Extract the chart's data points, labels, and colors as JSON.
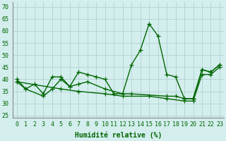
{
  "x_all": [
    0,
    1,
    2,
    3,
    4,
    5,
    6,
    7,
    8,
    9,
    10,
    11,
    12,
    13,
    14,
    15,
    16,
    17,
    18,
    19,
    20,
    21,
    22,
    23
  ],
  "line1": [
    40,
    36,
    38,
    34,
    41,
    41,
    37,
    43,
    42,
    41,
    40,
    34,
    34,
    46,
    52,
    63,
    58,
    42,
    41,
    32,
    32,
    44,
    43,
    46
  ],
  "line2_x": [
    0,
    1,
    3,
    4,
    5,
    6,
    7,
    8,
    10,
    12,
    13,
    17,
    18,
    19,
    20,
    21,
    22,
    23
  ],
  "line2_y": [
    39,
    36,
    33,
    36,
    40,
    37,
    38,
    39,
    36,
    34,
    34,
    33,
    33,
    32,
    32,
    44,
    43,
    46
  ],
  "line3_x": [
    0,
    5,
    7,
    10,
    12,
    15,
    17,
    19,
    20,
    21,
    22,
    23
  ],
  "line3_y": [
    39,
    36,
    35,
    34,
    33,
    33,
    32,
    31,
    31,
    42,
    42,
    45
  ],
  "background_color": "#d4eeee",
  "grid_color": "#aacccc",
  "line_color": "#006600",
  "xlabel": "Humidité relative (%)",
  "ylim": [
    24,
    72
  ],
  "xlim": [
    -0.5,
    23.5
  ],
  "yticks": [
    25,
    30,
    35,
    40,
    45,
    50,
    55,
    60,
    65,
    70
  ],
  "xticks": [
    0,
    1,
    2,
    3,
    4,
    5,
    6,
    7,
    8,
    9,
    10,
    11,
    12,
    13,
    14,
    15,
    16,
    17,
    18,
    19,
    20,
    21,
    22,
    23
  ],
  "xlabel_fontsize": 7,
  "tick_fontsize": 6,
  "linewidth": 1.0,
  "markersize": 4
}
